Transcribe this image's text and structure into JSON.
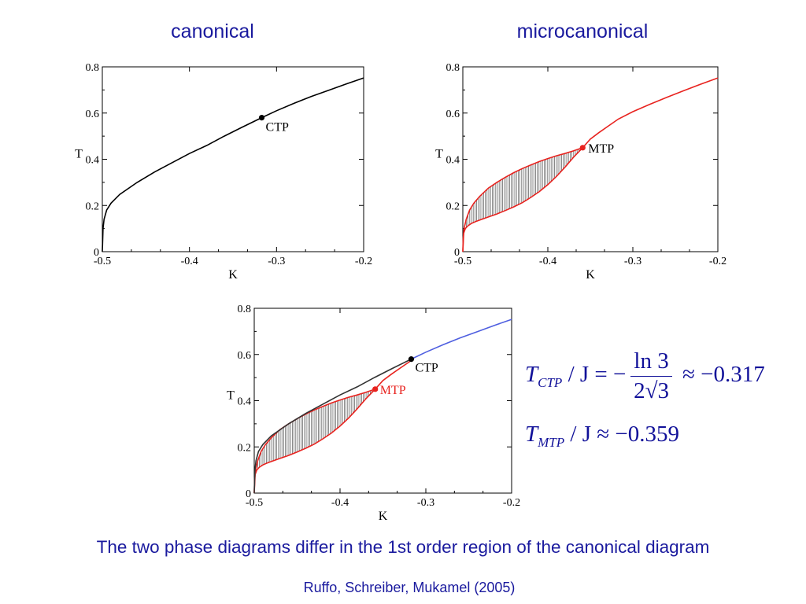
{
  "headings": {
    "left": "canonical",
    "right": "microcanonical"
  },
  "chart_data": [
    {
      "id": "canonical",
      "type": "line",
      "xlabel": "K",
      "ylabel": "T",
      "xlim": [
        -0.5,
        -0.2
      ],
      "ylim": [
        0,
        0.8
      ],
      "xticks": [
        "-0.5",
        "-0.4",
        "-0.3",
        "-0.2"
      ],
      "yticks": [
        "0",
        "0.2",
        "0.4",
        "0.6",
        "0.8"
      ],
      "series": [
        {
          "color": "#000000",
          "x": [
            -0.5,
            -0.4992,
            -0.498,
            -0.495,
            -0.49,
            -0.48,
            -0.46,
            -0.44,
            -0.42,
            -0.4,
            -0.38,
            -0.36,
            -0.34,
            -0.317,
            -0.3,
            -0.28,
            -0.26,
            -0.24,
            -0.22,
            -0.2
          ],
          "y": [
            0.0,
            0.1,
            0.14,
            0.18,
            0.21,
            0.248,
            0.3,
            0.345,
            0.385,
            0.425,
            0.46,
            0.5,
            0.538,
            0.58,
            0.61,
            0.642,
            0.672,
            0.699,
            0.726,
            0.752
          ]
        }
      ],
      "points": [
        {
          "x": -0.317,
          "y": 0.58,
          "label": "CTP",
          "color": "#000000"
        }
      ]
    },
    {
      "id": "microcanonical",
      "type": "area",
      "xlabel": "K",
      "ylabel": "T",
      "xlim": [
        -0.5,
        -0.2
      ],
      "ylim": [
        0,
        0.8
      ],
      "xticks": [
        "-0.5",
        "-0.4",
        "-0.3",
        "-0.2"
      ],
      "yticks": [
        "0",
        "0.2",
        "0.4",
        "0.6",
        "0.8"
      ],
      "series": [
        {
          "name": "upper",
          "color": "#e8231f",
          "x": [
            -0.5,
            -0.4995,
            -0.4985,
            -0.496,
            -0.492,
            -0.487,
            -0.48,
            -0.47,
            -0.46,
            -0.45,
            -0.44,
            -0.43,
            -0.42,
            -0.41,
            -0.4,
            -0.39,
            -0.38,
            -0.37,
            -0.359
          ],
          "y": [
            0.0,
            0.06,
            0.1,
            0.14,
            0.18,
            0.21,
            0.24,
            0.275,
            0.3,
            0.322,
            0.342,
            0.36,
            0.375,
            0.39,
            0.403,
            0.415,
            0.425,
            0.436,
            0.45
          ]
        },
        {
          "name": "lower",
          "color": "#e8231f",
          "x": [
            -0.5,
            -0.499,
            -0.497,
            -0.494,
            -0.49,
            -0.485,
            -0.48,
            -0.47,
            -0.46,
            -0.45,
            -0.44,
            -0.43,
            -0.42,
            -0.41,
            -0.4,
            -0.39,
            -0.38,
            -0.37,
            -0.359
          ],
          "y": [
            0.0,
            0.08,
            0.1,
            0.112,
            0.122,
            0.13,
            0.137,
            0.15,
            0.163,
            0.178,
            0.194,
            0.212,
            0.235,
            0.26,
            0.29,
            0.325,
            0.365,
            0.408,
            0.45
          ]
        },
        {
          "name": "branch",
          "color": "#e8231f",
          "x": [
            -0.359,
            -0.35,
            -0.34,
            -0.33,
            -0.317,
            -0.3,
            -0.28,
            -0.26,
            -0.24,
            -0.22,
            -0.2
          ],
          "y": [
            0.45,
            0.487,
            0.515,
            0.541,
            0.574,
            0.606,
            0.638,
            0.668,
            0.697,
            0.725,
            0.752
          ]
        }
      ],
      "points": [
        {
          "x": -0.359,
          "y": 0.45,
          "label": "MTP",
          "color": "#e8231f"
        }
      ]
    },
    {
      "id": "combined",
      "type": "line",
      "xlabel": "K",
      "ylabel": "T",
      "xlim": [
        -0.5,
        -0.2
      ],
      "ylim": [
        0,
        0.8
      ],
      "xticks": [
        "-0.5",
        "-0.4",
        "-0.3",
        "-0.2"
      ],
      "yticks": [
        "0",
        "0.2",
        "0.4",
        "0.6",
        "0.8"
      ],
      "series": [
        {
          "name": "upper",
          "color": "#e8231f",
          "x": [
            -0.5,
            -0.4995,
            -0.4985,
            -0.496,
            -0.492,
            -0.487,
            -0.48,
            -0.47,
            -0.46,
            -0.45,
            -0.44,
            -0.43,
            -0.42,
            -0.41,
            -0.4,
            -0.39,
            -0.38,
            -0.37,
            -0.359
          ],
          "y": [
            0.0,
            0.06,
            0.1,
            0.14,
            0.18,
            0.21,
            0.24,
            0.275,
            0.3,
            0.322,
            0.342,
            0.36,
            0.375,
            0.39,
            0.403,
            0.415,
            0.425,
            0.436,
            0.45
          ]
        },
        {
          "name": "lower",
          "color": "#e8231f",
          "x": [
            -0.5,
            -0.499,
            -0.497,
            -0.494,
            -0.49,
            -0.485,
            -0.48,
            -0.47,
            -0.46,
            -0.45,
            -0.44,
            -0.43,
            -0.42,
            -0.41,
            -0.4,
            -0.39,
            -0.38,
            -0.37,
            -0.359
          ],
          "y": [
            0.0,
            0.08,
            0.1,
            0.112,
            0.122,
            0.13,
            0.137,
            0.15,
            0.163,
            0.178,
            0.194,
            0.212,
            0.235,
            0.26,
            0.29,
            0.325,
            0.365,
            0.408,
            0.45
          ]
        },
        {
          "name": "branch",
          "color": "#e8231f",
          "x": [
            -0.359,
            -0.35,
            -0.34,
            -0.33,
            -0.317
          ],
          "y": [
            0.45,
            0.487,
            0.515,
            0.541,
            0.574
          ]
        },
        {
          "name": "canonical",
          "color": "#333333",
          "x": [
            -0.5,
            -0.4992,
            -0.498,
            -0.495,
            -0.49,
            -0.48,
            -0.46,
            -0.44,
            -0.42,
            -0.4,
            -0.38,
            -0.36,
            -0.34,
            -0.317
          ],
          "y": [
            0.0,
            0.1,
            0.14,
            0.18,
            0.21,
            0.248,
            0.3,
            0.345,
            0.385,
            0.425,
            0.46,
            0.5,
            0.538,
            0.58
          ]
        },
        {
          "name": "common",
          "color": "#4f5fe0",
          "x": [
            -0.317,
            -0.3,
            -0.28,
            -0.26,
            -0.24,
            -0.22,
            -0.2
          ],
          "y": [
            0.58,
            0.61,
            0.642,
            0.672,
            0.699,
            0.726,
            0.752
          ]
        }
      ],
      "points": [
        {
          "x": -0.317,
          "y": 0.58,
          "label": "CTP",
          "color": "#000000"
        },
        {
          "x": -0.359,
          "y": 0.45,
          "label": "MTP",
          "color": "#e8231f"
        }
      ]
    }
  ],
  "formula": {
    "line1": {
      "T": "T",
      "sub": "CTP",
      "rest": " / J = −",
      "num": "ln 3",
      "den": "2√3",
      "approx": " ≈ −0.317"
    },
    "line2": {
      "T": "T",
      "sub": "MTP",
      "rest": " / J ≈ −0.359"
    }
  },
  "caption": "The two phase diagrams differ in the 1st order region of the canonical diagram",
  "citation": "Ruffo, Schreiber, Mukamel (2005)"
}
